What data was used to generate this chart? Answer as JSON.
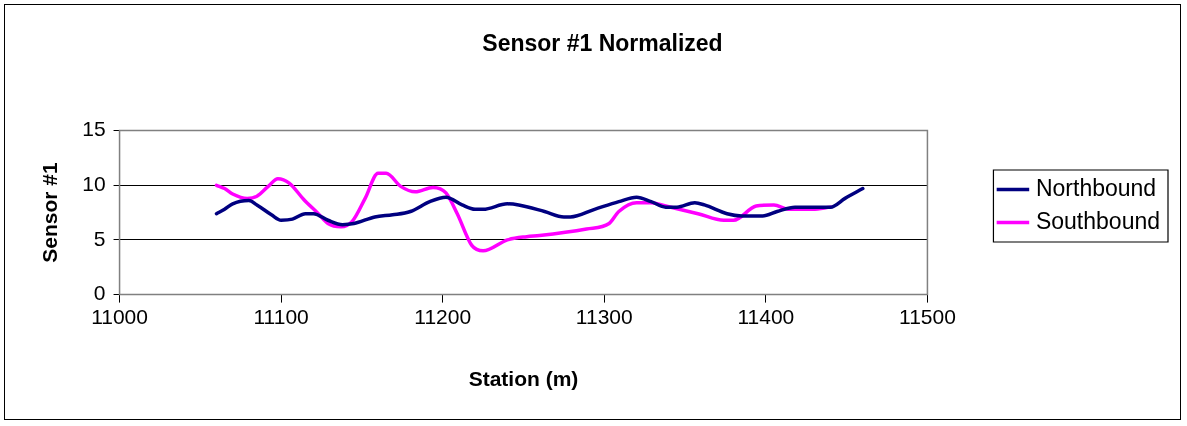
{
  "chart_data": {
    "type": "line",
    "title": "Sensor #1 Normalized",
    "xlabel": "Station (m)",
    "ylabel": "Sensor #1",
    "xlim": [
      11000,
      11500
    ],
    "xticks": [
      11000,
      11100,
      11200,
      11300,
      11400,
      11500
    ],
    "ylim": [
      0,
      15
    ],
    "yticks": [
      0,
      5,
      10,
      15
    ],
    "grid": "y",
    "legend": "right",
    "marker": "none",
    "line_style": "solid",
    "series": [
      {
        "name": "Northbound",
        "color": "#000080",
        "x": [
          11060,
          11065,
          11070,
          11080,
          11085,
          11094,
          11100,
          11107,
          11115,
          11120,
          11129,
          11138,
          11145,
          11158,
          11169,
          11180,
          11192,
          11202,
          11212,
          11220,
          11225,
          11240,
          11247,
          11263,
          11275,
          11279,
          11294,
          11309,
          11320,
          11329,
          11338,
          11345,
          11356,
          11362,
          11376,
          11385,
          11398,
          11407,
          11418,
          11432,
          11440,
          11449,
          11460
        ],
        "values": [
          7.4,
          7.8,
          8.3,
          8.6,
          8.2,
          7.3,
          6.8,
          6.9,
          7.4,
          7.4,
          6.8,
          6.4,
          6.5,
          7.1,
          7.3,
          7.6,
          8.5,
          8.9,
          8.2,
          7.8,
          7.8,
          8.3,
          8.2,
          7.6,
          7.1,
          7.1,
          7.8,
          8.5,
          8.9,
          8.5,
          8.0,
          8.0,
          8.4,
          8.2,
          7.4,
          7.2,
          7.2,
          7.6,
          8.0,
          8.0,
          8.0,
          8.8,
          9.7
        ]
      },
      {
        "name": "Southbound",
        "color": "#ff00ff",
        "x": [
          11060,
          11065,
          11070,
          11079,
          11085,
          11092,
          11098,
          11105,
          11114,
          11123,
          11129,
          11137,
          11144,
          11152,
          11160,
          11165,
          11174,
          11183,
          11194,
          11202,
          11209,
          11218,
          11225,
          11240,
          11252,
          11260,
          11289,
          11303,
          11309,
          11320,
          11329,
          11338,
          11358,
          11374,
          11380,
          11394,
          11405,
          11414,
          11429,
          11440
        ],
        "values": [
          10.0,
          9.7,
          9.2,
          8.8,
          9.0,
          9.9,
          10.6,
          10.2,
          8.7,
          7.4,
          6.5,
          6.2,
          6.7,
          8.8,
          11.1,
          11.1,
          9.9,
          9.4,
          9.8,
          9.3,
          7.4,
          4.5,
          4.0,
          5.0,
          5.3,
          5.4,
          6.0,
          6.5,
          7.6,
          8.4,
          8.4,
          8.1,
          7.4,
          6.8,
          6.8,
          8.1,
          8.2,
          7.8,
          7.8,
          8.0
        ]
      }
    ]
  }
}
